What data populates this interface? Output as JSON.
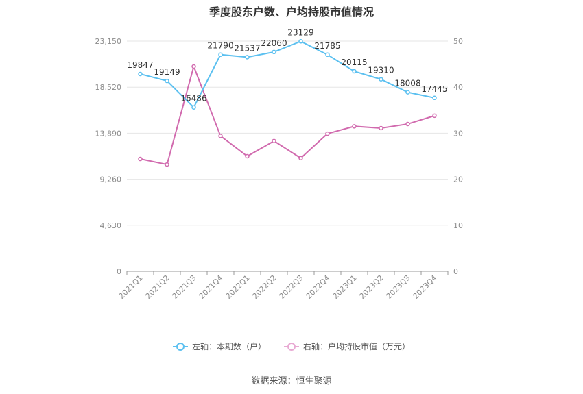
{
  "colors": {
    "left_series": "#5bc0f0",
    "right_series": "#d16aae",
    "grid": "#e6e6e6",
    "axis": "#999999"
  },
  "chart_data": {
    "type": "line",
    "title": "季度股东户数、户均持股市值情况",
    "categories": [
      "2021Q1",
      "2021Q2",
      "2021Q3",
      "2021Q4",
      "2022Q1",
      "2022Q2",
      "2022Q3",
      "2022Q4",
      "2023Q1",
      "2023Q2",
      "2023Q3",
      "2023Q4"
    ],
    "left_axis": {
      "ticks": [
        "0",
        "4,630",
        "9,260",
        "13,890",
        "18,520",
        "23,150"
      ],
      "range": [
        0,
        23150
      ]
    },
    "right_axis": {
      "ticks": [
        "0",
        "10",
        "20",
        "30",
        "40",
        "50"
      ],
      "range": [
        0,
        50
      ]
    },
    "series": [
      {
        "name": "左轴：本期数（户）",
        "axis": "left",
        "values": [
          19847,
          19149,
          16486,
          21790,
          21537,
          22060,
          23129,
          21785,
          20115,
          19310,
          18008,
          17445
        ],
        "labels": [
          "19847",
          "19149",
          "16486",
          "21790",
          "21537",
          "22060",
          "23129",
          "21785",
          "20115",
          "19310",
          "18008",
          "17445"
        ]
      },
      {
        "name": "右轴：户均持股市值（万元）",
        "axis": "right",
        "values": [
          24.4,
          23.2,
          44.5,
          29.4,
          25.0,
          28.3,
          24.6,
          29.9,
          31.5,
          31.1,
          32.0,
          33.8
        ]
      }
    ],
    "grid": true,
    "legend_position": "bottom"
  },
  "source": "数据来源：恒生聚源"
}
